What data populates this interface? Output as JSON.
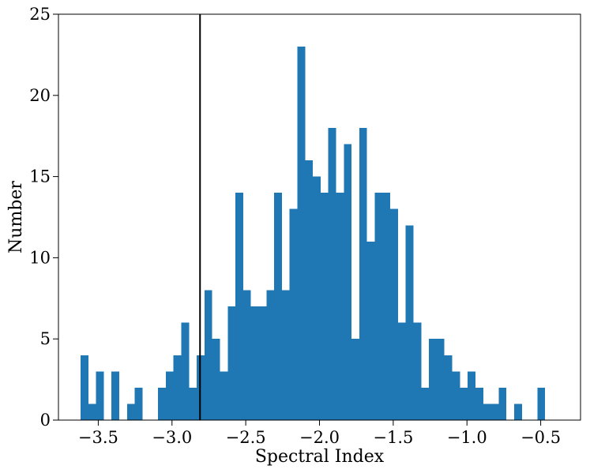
{
  "chart_data": {
    "type": "bar",
    "title": "",
    "xlabel": "Spectral Index",
    "ylabel": "Number",
    "xlim": [
      -3.77,
      -0.23
    ],
    "ylim": [
      0,
      25
    ],
    "x_ticks": [
      -3.5,
      -3.0,
      -2.5,
      -2.0,
      -1.5,
      -1.0,
      -0.5
    ],
    "x_tick_labels": [
      "−3.5",
      "−3.0",
      "−2.5",
      "−2.0",
      "−1.5",
      "−1.0",
      "−0.5"
    ],
    "y_ticks": [
      0,
      5,
      10,
      15,
      20,
      25
    ],
    "y_tick_labels": [
      "0",
      "5",
      "10",
      "15",
      "20",
      "25"
    ],
    "bin_start": -3.62,
    "bin_width": 0.0525,
    "counts": [
      4,
      1,
      3,
      0,
      3,
      0,
      1,
      2,
      0,
      0,
      2,
      3,
      4,
      6,
      2,
      4,
      8,
      5,
      3,
      7,
      14,
      8,
      7,
      7,
      8,
      14,
      8,
      13,
      23,
      16,
      15,
      14,
      18,
      14,
      17,
      5,
      18,
      11,
      14,
      14,
      13,
      6,
      12,
      6,
      2,
      5,
      5,
      4,
      3,
      2,
      3,
      2,
      1,
      1,
      2,
      0,
      1,
      0,
      0,
      2
    ],
    "bar_color": "#1f77b4",
    "vline_x": -2.81,
    "vline_color": "#000000",
    "grid": false
  }
}
